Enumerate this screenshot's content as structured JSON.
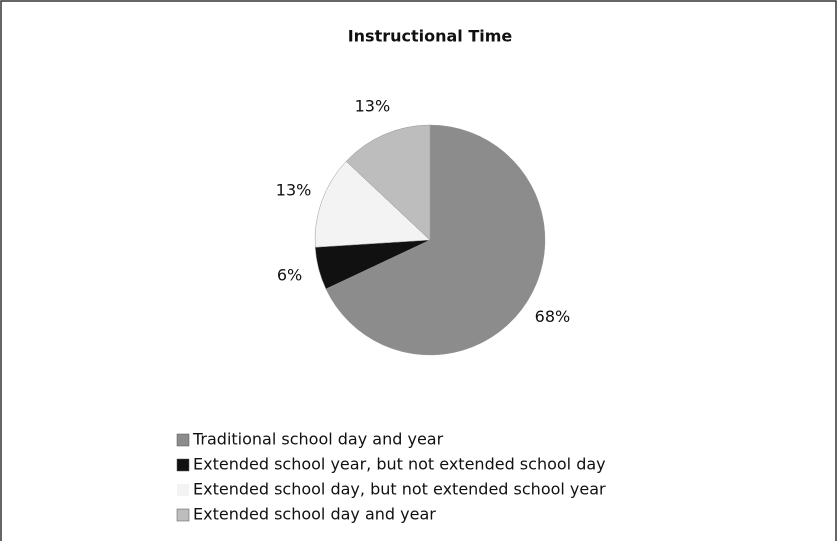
{
  "chart_data": {
    "type": "pie",
    "title": "Instructional Time",
    "categories": [
      "Traditional school day and year",
      "Extended school year, but not extended school day",
      "Extended school day, but not extended school year",
      "Extended school day and year"
    ],
    "values": [
      68,
      6,
      13,
      13
    ],
    "value_labels": [
      "68%",
      "6%",
      "13%",
      "13%"
    ],
    "colors": [
      "#8c8c8c",
      "#111111",
      "#f3f3f3",
      "#bdbdbd"
    ],
    "legend": "bottom"
  }
}
